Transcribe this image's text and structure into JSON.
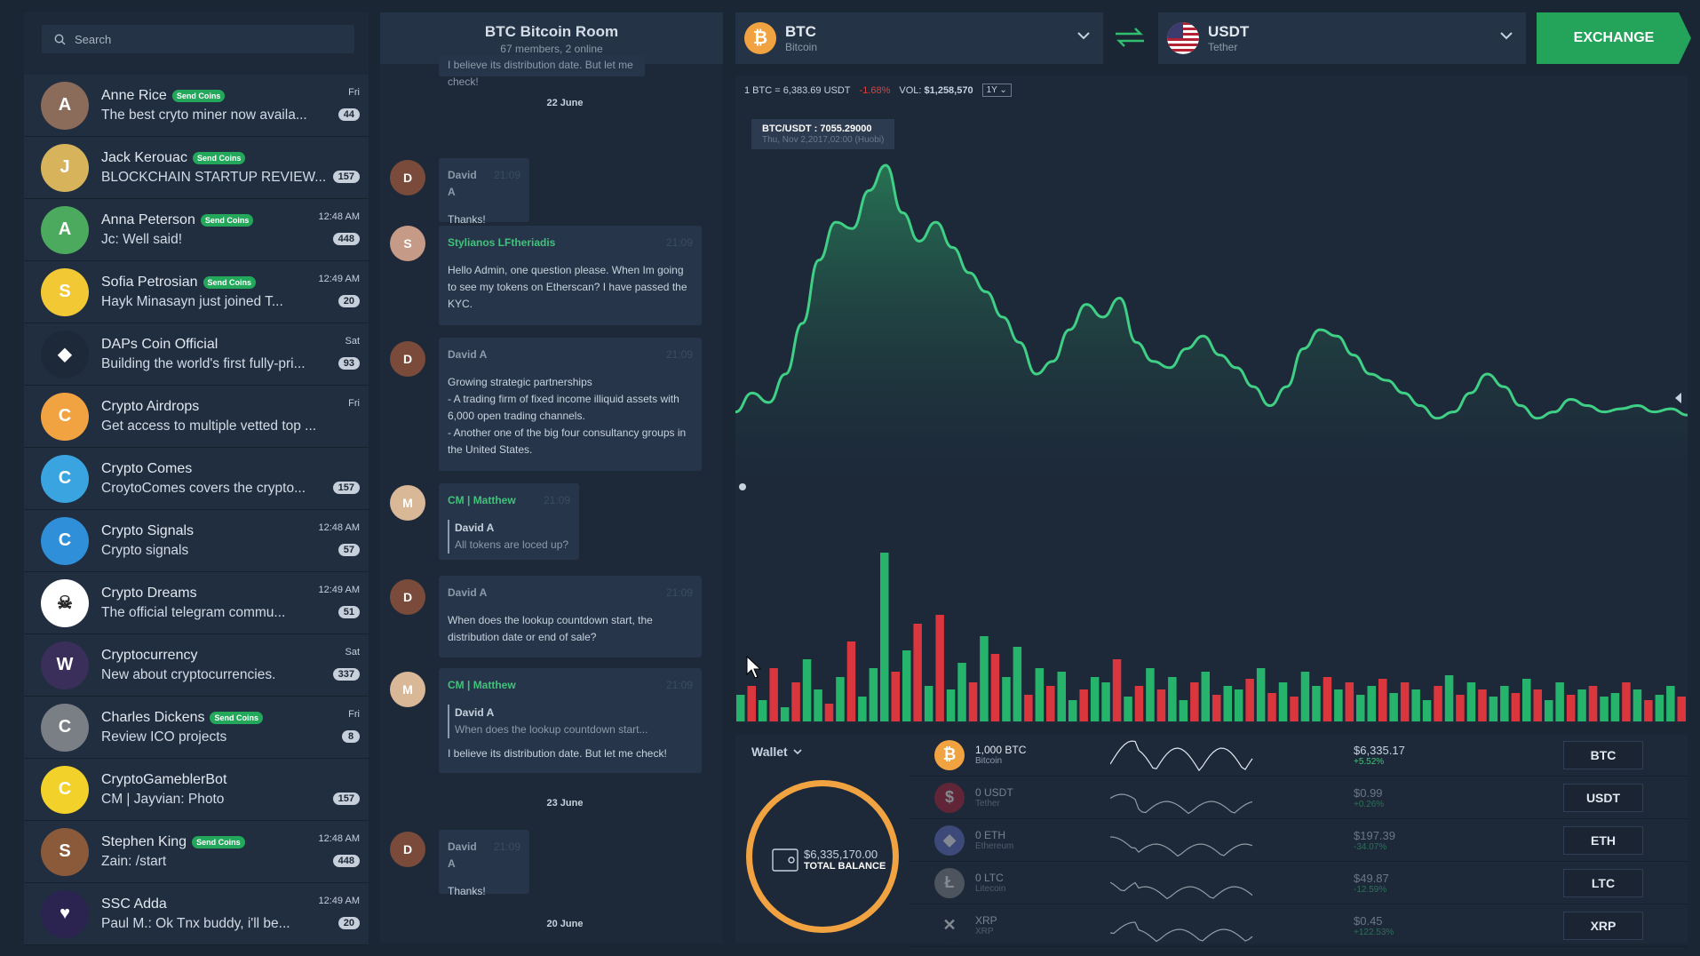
{
  "search": {
    "placeholder": "Search"
  },
  "contacts": [
    {
      "name": "Anne Rice",
      "send": true,
      "msg": "The best cryto miner now availa...",
      "time": "Fri",
      "count": "44",
      "color": "#8b6b5a",
      "initial": "A"
    },
    {
      "name": "Jack Kerouac",
      "send": true,
      "msg": "BLOCKCHAIN STARTUP REVIEW...",
      "time": "",
      "count": "157",
      "color": "#d7b45c",
      "initial": "J"
    },
    {
      "name": "Anna Peterson",
      "send": true,
      "msg": "Jc: Well said!",
      "time": "12:48 AM",
      "count": "448",
      "color": "#4caa5e",
      "initial": "A"
    },
    {
      "name": "Sofia Petrosian",
      "send": true,
      "msg": "Hayk Minasayn just joined T...",
      "time": "12:49 AM",
      "count": "20",
      "color": "#f2c935",
      "initial": "S"
    },
    {
      "name": "DAPs Coin Official",
      "send": false,
      "msg": "Building the world's first fully-pri...",
      "time": "Sat",
      "count": "93",
      "color": "#1d2939",
      "initial": "◆"
    },
    {
      "name": "Crypto Airdrops",
      "send": false,
      "msg": "Get access to multiple vetted top ...",
      "time": "Fri",
      "count": "",
      "color": "#f2a341",
      "initial": "C"
    },
    {
      "name": "Crypto Comes",
      "send": false,
      "msg": "CroytoComes covers the crypto...",
      "time": "",
      "count": "157",
      "color": "#3aa4e0",
      "initial": "C"
    },
    {
      "name": "Crypto Signals",
      "send": false,
      "msg": "Crypto signals",
      "time": "12:48 AM",
      "count": "57",
      "color": "#2f8fd8",
      "initial": "C"
    },
    {
      "name": "Crypto Dreams",
      "send": false,
      "msg": "The official telegram commu...",
      "time": "12:49 AM",
      "count": "51",
      "color": "#ffffff",
      "initial": "☠"
    },
    {
      "name": "Cryptocurrency",
      "send": false,
      "msg": "New about cryptocurrencies.",
      "time": "Sat",
      "count": "337",
      "color": "#3a2f5a",
      "initial": "W"
    },
    {
      "name": "Charles Dickens",
      "send": true,
      "msg": "Review ICO projects",
      "time": "Fri",
      "count": "8",
      "color": "#7a7f86",
      "initial": "C"
    },
    {
      "name": "CryptoGameblerBot",
      "send": false,
      "msg": "CM | Jayvian: Photo",
      "time": "",
      "count": "157",
      "color": "#f2d12a",
      "initial": "C"
    },
    {
      "name": "Stephen King",
      "send": true,
      "msg": "Zain: /start",
      "time": "12:48 AM",
      "count": "448",
      "color": "#8a5a3a",
      "initial": "S"
    },
    {
      "name": "SSC Adda",
      "send": false,
      "msg": "Paul M.: Ok Tnx buddy, i'll be...",
      "time": "12:49 AM",
      "count": "20",
      "color": "#2b2350",
      "initial": "♥"
    }
  ],
  "send_coins_label": "Send Coins",
  "room": {
    "title": "BTC Bitcoin Room",
    "subtitle": "67 members, 2 online"
  },
  "chat": {
    "top_fragment": "I believe its distribution date. But let me check!",
    "dates": [
      "22 June",
      "23 June",
      "20 June"
    ],
    "messages": [
      {
        "author": "David A",
        "time": "21:09",
        "text": "Thanks!"
      },
      {
        "author": "Stylianos LFtheriadis",
        "time": "21:09",
        "text": "Hello Admin, one question please. When Im going to see my tokens on Etherscan? I have passed the KYC."
      },
      {
        "author": "David A",
        "time": "21:09",
        "lines": [
          "Growing strategic partnerships",
          "- A trading firm of fixed income illiquid assets with 6,000 open trading channels.",
          "- Another one of the big four consultancy groups in the United States."
        ]
      },
      {
        "author": "CM | Matthew",
        "time": "21:09",
        "quote_author": "David A",
        "quote_text": "All tokens are loced up?"
      },
      {
        "author": "David A",
        "time": "21:09",
        "text": "When does the lookup countdown start, the distribution date or end of sale?"
      },
      {
        "author": "CM | Matthew",
        "time": "21:09",
        "quote_author": "David A",
        "quote_text": "When does the lookup countdown start...",
        "text": "I believe its distribution date. But let me check!"
      },
      {
        "author": "David A",
        "time": "21:09",
        "text": "Thanks!"
      }
    ]
  },
  "from_coin": {
    "code": "BTC",
    "name": "Bitcoin",
    "color": "#f2a341",
    "symbol": "₿"
  },
  "to_coin": {
    "code": "USDT",
    "name": "Tether"
  },
  "exchange_label": "EXCHANGE",
  "ticker": {
    "rate": "1 BTC = 6,383.69 USDT",
    "change": "-1.68%",
    "vol_label": "VOL:",
    "vol": "$1,258,570",
    "range": "1Y"
  },
  "tooltip": {
    "pair": "BTC/USDT : 7055.29000",
    "date": "Thu, Nov 2,2017,02:00 (Huobi)"
  },
  "chart_data": {
    "type": "area",
    "line": [
      22,
      28,
      25,
      34,
      50,
      70,
      82,
      80,
      92,
      100,
      85,
      76,
      82,
      74,
      66,
      60,
      52,
      44,
      34,
      38,
      48,
      56,
      52,
      58,
      44,
      38,
      36,
      42,
      46,
      40,
      36,
      30,
      24,
      30,
      42,
      48,
      46,
      40,
      34,
      32,
      28,
      24,
      20,
      22,
      28,
      34,
      30,
      24,
      20,
      22,
      26,
      24,
      22,
      23,
      24,
      22,
      23,
      21
    ],
    "volume": [
      15,
      20,
      12,
      30,
      8,
      22,
      35,
      18,
      10,
      25,
      45,
      14,
      30,
      95,
      28,
      40,
      55,
      20,
      60,
      18,
      33,
      22,
      48,
      38,
      25,
      42,
      15,
      30,
      20,
      28,
      12,
      18,
      25,
      22,
      35,
      14,
      20,
      30,
      18,
      25,
      12,
      22,
      28,
      15,
      20,
      18,
      24,
      30,
      16,
      22,
      14,
      28,
      20,
      25,
      18,
      22,
      15,
      20,
      24,
      16,
      22,
      18,
      12,
      20,
      26,
      15,
      22,
      18,
      14,
      20,
      16,
      24,
      18,
      12,
      22,
      15,
      18,
      20,
      14,
      16,
      22,
      18,
      12,
      15,
      20,
      14
    ],
    "volume_up": [
      1,
      0,
      1,
      0,
      1,
      0,
      1,
      1,
      0,
      1,
      0,
      1,
      1,
      1,
      0,
      1,
      0,
      1,
      0,
      1,
      1,
      0,
      1,
      0,
      1,
      1,
      0,
      1,
      0,
      1,
      1,
      0,
      1,
      1,
      0,
      1,
      0,
      1,
      0,
      1,
      1,
      0,
      1,
      0,
      1,
      1,
      0,
      1,
      0,
      1,
      0,
      1,
      1,
      0,
      1,
      0,
      1,
      1,
      0,
      1,
      0,
      1,
      1,
      0,
      1,
      0,
      1,
      0,
      1,
      1,
      0,
      1,
      0,
      1,
      1,
      0,
      1,
      0,
      1,
      1,
      0,
      1,
      0,
      1,
      1,
      0
    ],
    "up_color": "#26b36b",
    "down_color": "#d9363e"
  },
  "wallet": {
    "label": "Wallet",
    "total_value": "$6,335,170.00",
    "total_label": "TOTAL BALANCE",
    "assets": [
      {
        "amount": "1,000 BTC",
        "name": "Bitcoin",
        "value": "$6,335.17",
        "change": "+5.52%",
        "btn": "BTC",
        "color": "#f2a341",
        "symbol": "₿",
        "dim": false
      },
      {
        "amount": "0 USDT",
        "name": "Tether",
        "value": "$0.99",
        "change": "+0.26%",
        "btn": "USDT",
        "color": "#b22234",
        "symbol": "$",
        "dim": true
      },
      {
        "amount": "0 ETH",
        "name": "Ethereum",
        "value": "$197.39",
        "change": "-34.07%",
        "btn": "ETH",
        "color": "#6270c7",
        "symbol": "◆",
        "dim": true
      },
      {
        "amount": "0 LTC",
        "name": "Litecoin",
        "value": "$49.87",
        "change": "-12.59%",
        "btn": "LTC",
        "color": "#8a8a8a",
        "symbol": "Ł",
        "dim": true
      },
      {
        "amount": "XRP",
        "name": "XRP",
        "value": "$0.45",
        "change": "+122.53%",
        "btn": "XRP",
        "color": "#1d2939",
        "symbol": "✕",
        "dim": true
      }
    ]
  }
}
